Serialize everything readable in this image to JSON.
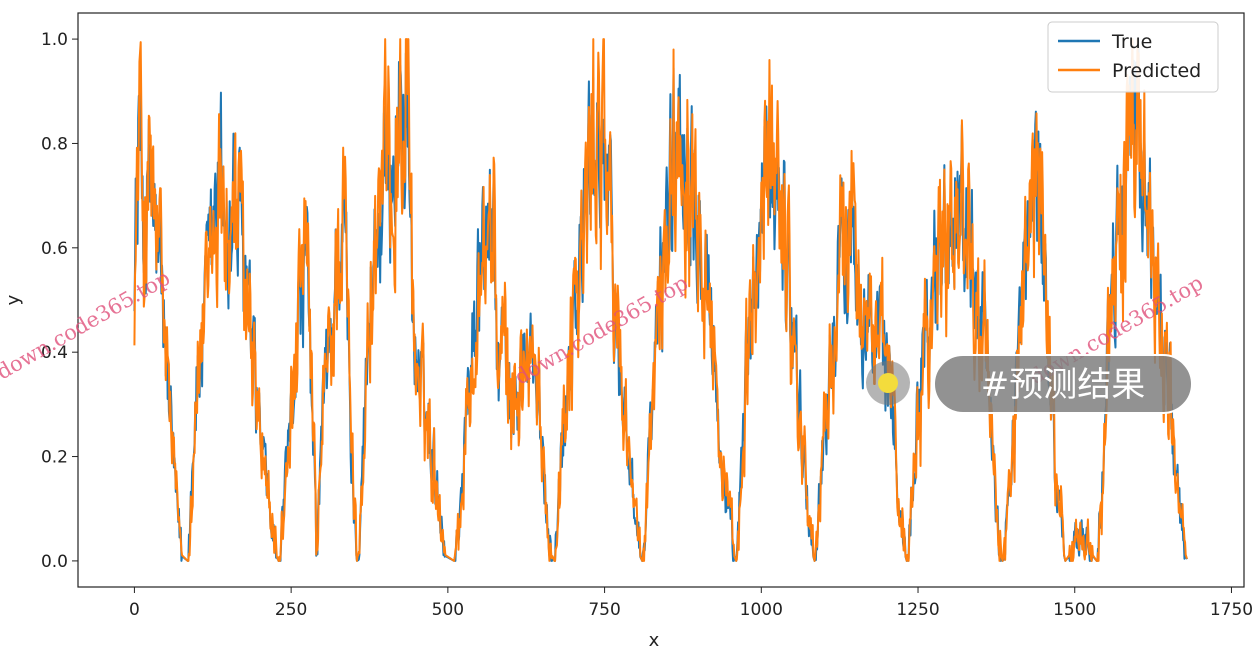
{
  "chart_data": {
    "type": "line",
    "xlabel": "x",
    "ylabel": "y",
    "xlim": [
      -90,
      1770
    ],
    "ylim": [
      -0.05,
      1.05
    ],
    "xticks": [
      0,
      250,
      500,
      750,
      1000,
      1250,
      1500,
      1750
    ],
    "yticks": [
      0.0,
      0.2,
      0.4,
      0.6,
      0.8,
      1.0
    ],
    "grid": false,
    "legend_position": "top-right",
    "n_points": 1680,
    "series": [
      {
        "name": "True",
        "color": "#1f77b4"
      },
      {
        "name": "Predicted",
        "color": "#ff7f0e"
      }
    ],
    "anchors": [
      [
        0,
        0.6
      ],
      [
        8,
        0.84
      ],
      [
        15,
        0.62
      ],
      [
        25,
        0.72
      ],
      [
        40,
        0.55
      ],
      [
        55,
        0.3
      ],
      [
        65,
        0.12
      ],
      [
        75,
        0.02
      ],
      [
        85,
        0.0
      ],
      [
        95,
        0.28
      ],
      [
        110,
        0.45
      ],
      [
        125,
        0.62
      ],
      [
        140,
        0.75
      ],
      [
        150,
        0.58
      ],
      [
        160,
        0.7
      ],
      [
        175,
        0.55
      ],
      [
        190,
        0.35
      ],
      [
        205,
        0.18
      ],
      [
        220,
        0.05
      ],
      [
        230,
        0.0
      ],
      [
        245,
        0.2
      ],
      [
        260,
        0.48
      ],
      [
        275,
        0.55
      ],
      [
        285,
        0.2
      ],
      [
        290,
        0.02
      ],
      [
        300,
        0.3
      ],
      [
        315,
        0.45
      ],
      [
        325,
        0.62
      ],
      [
        335,
        0.65
      ],
      [
        345,
        0.2
      ],
      [
        355,
        0.0
      ],
      [
        365,
        0.25
      ],
      [
        380,
        0.58
      ],
      [
        400,
        0.72
      ],
      [
        420,
        0.82
      ],
      [
        435,
        0.9
      ],
      [
        445,
        0.4
      ],
      [
        460,
        0.3
      ],
      [
        470,
        0.25
      ],
      [
        485,
        0.12
      ],
      [
        495,
        0.02
      ],
      [
        510,
        0.0
      ],
      [
        525,
        0.2
      ],
      [
        540,
        0.45
      ],
      [
        555,
        0.58
      ],
      [
        570,
        0.68
      ],
      [
        580,
        0.35
      ],
      [
        590,
        0.42
      ],
      [
        600,
        0.28
      ],
      [
        615,
        0.35
      ],
      [
        630,
        0.4
      ],
      [
        645,
        0.28
      ],
      [
        660,
        0.05
      ],
      [
        670,
        0.0
      ],
      [
        680,
        0.2
      ],
      [
        695,
        0.45
      ],
      [
        710,
        0.55
      ],
      [
        725,
        0.75
      ],
      [
        745,
        0.85
      ],
      [
        760,
        0.6
      ],
      [
        775,
        0.35
      ],
      [
        790,
        0.2
      ],
      [
        800,
        0.05
      ],
      [
        810,
        0.0
      ],
      [
        825,
        0.3
      ],
      [
        840,
        0.55
      ],
      [
        855,
        0.75
      ],
      [
        870,
        0.85
      ],
      [
        885,
        0.78
      ],
      [
        900,
        0.7
      ],
      [
        915,
        0.55
      ],
      [
        925,
        0.35
      ],
      [
        935,
        0.2
      ],
      [
        950,
        0.05
      ],
      [
        960,
        0.0
      ],
      [
        975,
        0.35
      ],
      [
        990,
        0.55
      ],
      [
        1005,
        0.7
      ],
      [
        1020,
        0.8
      ],
      [
        1035,
        0.65
      ],
      [
        1050,
        0.45
      ],
      [
        1060,
        0.3
      ],
      [
        1075,
        0.08
      ],
      [
        1085,
        0.0
      ],
      [
        1100,
        0.25
      ],
      [
        1115,
        0.45
      ],
      [
        1130,
        0.6
      ],
      [
        1145,
        0.68
      ],
      [
        1160,
        0.5
      ],
      [
        1175,
        0.45
      ],
      [
        1190,
        0.4
      ],
      [
        1205,
        0.35
      ],
      [
        1220,
        0.1
      ],
      [
        1232,
        0.0
      ],
      [
        1245,
        0.25
      ],
      [
        1260,
        0.45
      ],
      [
        1275,
        0.55
      ],
      [
        1290,
        0.62
      ],
      [
        1305,
        0.7
      ],
      [
        1320,
        0.68
      ],
      [
        1330,
        0.62
      ],
      [
        1345,
        0.58
      ],
      [
        1360,
        0.35
      ],
      [
        1372,
        0.1
      ],
      [
        1385,
        0.0
      ],
      [
        1398,
        0.2
      ],
      [
        1410,
        0.4
      ],
      [
        1425,
        0.6
      ],
      [
        1435,
        0.7
      ],
      [
        1445,
        0.75
      ],
      [
        1455,
        0.45
      ],
      [
        1465,
        0.25
      ],
      [
        1475,
        0.1
      ],
      [
        1485,
        0.0
      ],
      [
        1495,
        0.03
      ],
      [
        1510,
        0.05
      ],
      [
        1525,
        0.03
      ],
      [
        1535,
        0.0
      ],
      [
        1545,
        0.2
      ],
      [
        1560,
        0.55
      ],
      [
        1575,
        0.7
      ],
      [
        1590,
        0.78
      ],
      [
        1600,
        0.85
      ],
      [
        1610,
        0.75
      ],
      [
        1620,
        0.62
      ],
      [
        1635,
        0.5
      ],
      [
        1650,
        0.35
      ],
      [
        1665,
        0.1
      ],
      [
        1680,
        0.0
      ]
    ]
  },
  "watermarks": [
    "down.code365.top",
    "down.code365.top",
    "down.code365.top"
  ],
  "overlay": {
    "tag_text": "#预测结果"
  }
}
